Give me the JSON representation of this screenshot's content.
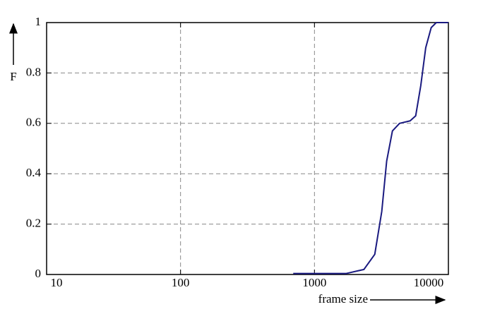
{
  "chart_data": {
    "type": "line",
    "xlabel": "frame size",
    "ylabel": "F",
    "series": [
      {
        "color": "#1a1a80",
        "x": [
          694,
          1000,
          1730,
          2340,
          2820,
          3180,
          3460,
          3820,
          4320,
          5180,
          5700,
          6220,
          6770,
          7440,
          8120,
          10000
        ],
        "values": [
          0.004,
          0.004,
          0.004,
          0.02,
          0.08,
          0.25,
          0.45,
          0.57,
          0.6,
          0.61,
          0.63,
          0.75,
          0.9,
          0.98,
          1.0,
          1.0
        ]
      }
    ],
    "xlim": [
      10,
      10000
    ],
    "xticks": [
      10,
      100,
      1000,
      10000
    ],
    "xscale": "log",
    "ylim": [
      0,
      1
    ],
    "yticks": [
      0,
      0.2,
      0.4,
      0.6,
      0.8,
      1
    ],
    "grid": true
  }
}
